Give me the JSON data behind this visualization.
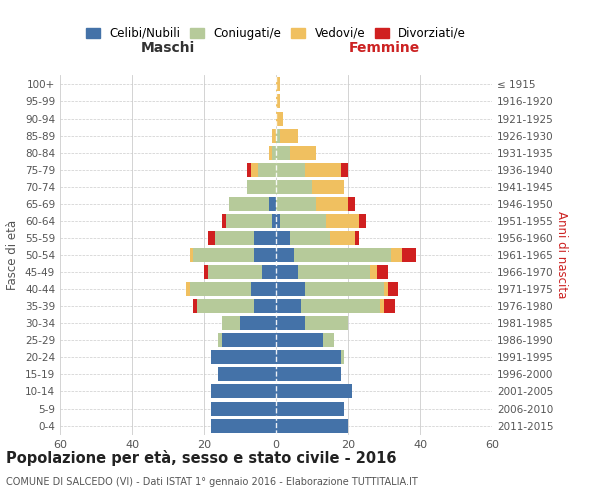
{
  "age_groups": [
    "0-4",
    "5-9",
    "10-14",
    "15-19",
    "20-24",
    "25-29",
    "30-34",
    "35-39",
    "40-44",
    "45-49",
    "50-54",
    "55-59",
    "60-64",
    "65-69",
    "70-74",
    "75-79",
    "80-84",
    "85-89",
    "90-94",
    "95-99",
    "100+"
  ],
  "birth_years": [
    "2011-2015",
    "2006-2010",
    "2001-2005",
    "1996-2000",
    "1991-1995",
    "1986-1990",
    "1981-1985",
    "1976-1980",
    "1971-1975",
    "1966-1970",
    "1961-1965",
    "1956-1960",
    "1951-1955",
    "1946-1950",
    "1941-1945",
    "1936-1940",
    "1931-1935",
    "1926-1930",
    "1921-1925",
    "1916-1920",
    "≤ 1915"
  ],
  "maschi": {
    "celibi": [
      18,
      18,
      18,
      16,
      18,
      15,
      10,
      6,
      7,
      4,
      6,
      6,
      1,
      2,
      0,
      0,
      0,
      0,
      0,
      0,
      0
    ],
    "coniugati": [
      0,
      0,
      0,
      0,
      0,
      1,
      5,
      16,
      17,
      15,
      17,
      11,
      13,
      11,
      8,
      5,
      1,
      0,
      0,
      0,
      0
    ],
    "vedovi": [
      0,
      0,
      0,
      0,
      0,
      0,
      0,
      0,
      1,
      0,
      1,
      0,
      0,
      0,
      0,
      2,
      1,
      1,
      0,
      0,
      0
    ],
    "divorziati": [
      0,
      0,
      0,
      0,
      0,
      0,
      0,
      1,
      0,
      1,
      0,
      2,
      1,
      0,
      0,
      1,
      0,
      0,
      0,
      0,
      0
    ]
  },
  "femmine": {
    "nubili": [
      20,
      19,
      21,
      18,
      18,
      13,
      8,
      7,
      8,
      6,
      5,
      4,
      1,
      0,
      0,
      0,
      0,
      0,
      0,
      0,
      0
    ],
    "coniugate": [
      0,
      0,
      0,
      0,
      1,
      3,
      12,
      22,
      22,
      20,
      27,
      11,
      13,
      11,
      10,
      8,
      4,
      1,
      0,
      0,
      0
    ],
    "vedove": [
      0,
      0,
      0,
      0,
      0,
      0,
      0,
      1,
      1,
      2,
      3,
      7,
      9,
      9,
      9,
      10,
      7,
      5,
      2,
      1,
      1
    ],
    "divorziate": [
      0,
      0,
      0,
      0,
      0,
      0,
      0,
      3,
      3,
      3,
      4,
      1,
      2,
      2,
      0,
      2,
      0,
      0,
      0,
      0,
      0
    ]
  },
  "colors": {
    "celibi": "#4472a8",
    "coniugati": "#b6ca9a",
    "vedovi": "#f0c060",
    "divorziati": "#d02020"
  },
  "xlim": 60,
  "title": "Popolazione per età, sesso e stato civile - 2016",
  "subtitle": "COMUNE DI SALCEDO (VI) - Dati ISTAT 1° gennaio 2016 - Elaborazione TUTTITALIA.IT",
  "legend_labels": [
    "Celibi/Nubili",
    "Coniugati/e",
    "Vedovi/e",
    "Divorziati/e"
  ],
  "ylabel_left": "Fasce di età",
  "ylabel_right": "Anni di nascita",
  "xlabel_left": "Maschi",
  "xlabel_right": "Femmine"
}
